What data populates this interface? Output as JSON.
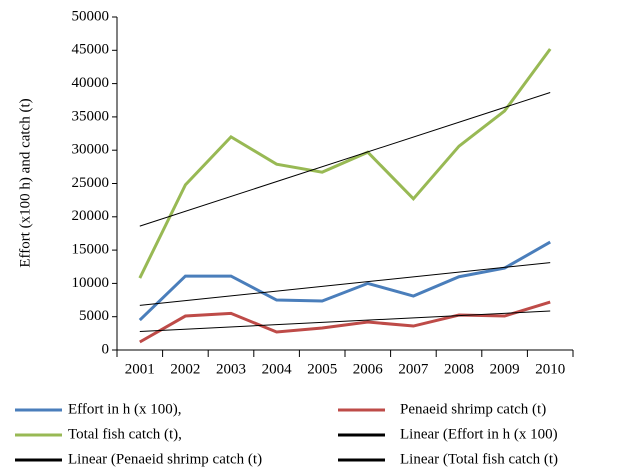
{
  "chart_data": {
    "type": "line",
    "y_label": "Effort (x100 h) and catch (t)",
    "categories": [
      "2001",
      "2002",
      "2003",
      "2004",
      "2005",
      "2006",
      "2007",
      "2008",
      "2009",
      "2010"
    ],
    "series": [
      {
        "name": "Effort in h (x 100),",
        "color": "#4a7ebb",
        "values": [
          4500,
          11100,
          11100,
          7500,
          7350,
          10000,
          8100,
          11000,
          12300,
          16200
        ]
      },
      {
        "name": "Penaeid shrimp catch (t)",
        "color": "#be4b48",
        "values": [
          1200,
          5100,
          5500,
          2700,
          3300,
          4200,
          3600,
          5250,
          5100,
          7200
        ]
      },
      {
        "name": "Total fish catch (t),",
        "color": "#98b954",
        "values": [
          10800,
          24800,
          32000,
          27900,
          26700,
          29700,
          22700,
          30600,
          35900,
          45200
        ]
      },
      {
        "name": "Linear (Effort in h (x 100)",
        "color": "#000000",
        "trend_of": 0
      },
      {
        "name": "Linear (Penaeid shrimp catch (t)",
        "color": "#000000",
        "trend_of": 1
      },
      {
        "name": "Linear (Total fish catch (t)",
        "color": "#000000",
        "trend_of": 2
      }
    ],
    "ylim": [
      0,
      50000
    ],
    "yticks": [
      0,
      5000,
      10000,
      15000,
      20000,
      25000,
      30000,
      35000,
      40000,
      45000,
      50000
    ],
    "grid": false
  }
}
